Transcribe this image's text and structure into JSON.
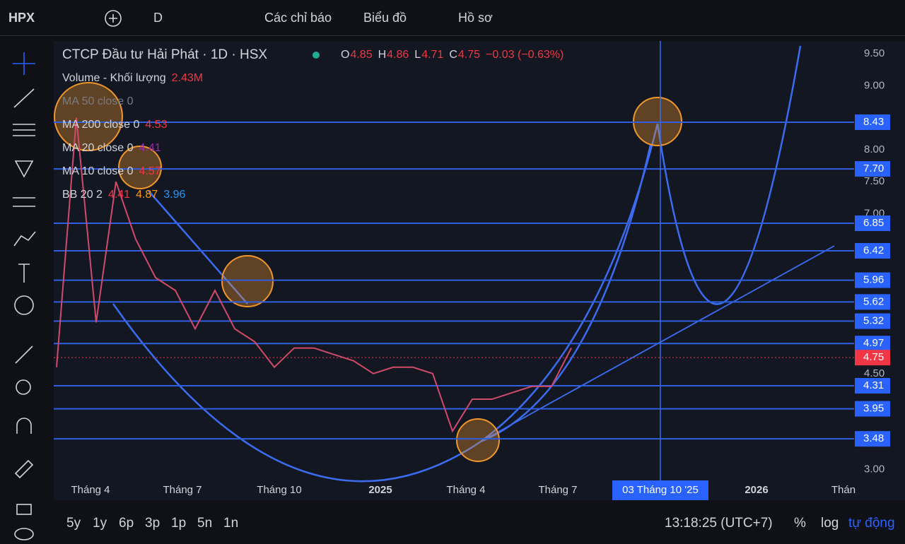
{
  "toolbar": {
    "symbol": "HPX",
    "interval": "D",
    "indicators": "Các chỉ báo",
    "chart_menu": "Biểu đồ",
    "profile": "Hồ sơ"
  },
  "legend": {
    "title": "CTCP Đầu tư Hải Phát · 1D · HSX",
    "ohlc": [
      {
        "label": "O",
        "value": "4.85"
      },
      {
        "label": "H",
        "value": "4.86"
      },
      {
        "label": "L",
        "value": "4.71"
      },
      {
        "label": "C",
        "value": "4.75"
      }
    ],
    "change": "−0.03 (−0.63%)",
    "volume": {
      "label": "Volume - Khối lượng",
      "value": "2.43M"
    },
    "indicators": [
      {
        "name": "MA 50 close 0",
        "values": []
      },
      {
        "name": "MA 200 close 0",
        "values": [
          "4.53"
        ]
      },
      {
        "name": "MA 20 close 0",
        "values": [
          "4.41"
        ]
      },
      {
        "name": "MA 10 close 0",
        "values": [
          "4.57"
        ]
      },
      {
        "name": "BB 20 2",
        "values": [
          "4.41",
          "4.87",
          "3.96"
        ]
      }
    ]
  },
  "chart_data": {
    "type": "line",
    "color": "#d04a6a",
    "values": [
      4.6,
      8.5,
      5.3,
      7.5,
      6.6,
      6.0,
      5.8,
      5.2,
      5.8,
      5.2,
      5.0,
      4.6,
      4.9,
      4.9,
      4.8,
      4.7,
      4.5,
      4.6,
      4.6,
      4.5,
      3.6,
      4.1,
      4.1,
      4.2,
      4.3,
      4.3,
      4.9
    ],
    "ylim": [
      2.83,
      9.7
    ],
    "yticks": [
      {
        "value": 3,
        "label": "3.00"
      },
      {
        "value": 4.5,
        "label": "4.50"
      },
      {
        "value": 7,
        "label": "7.00"
      },
      {
        "value": 7.5,
        "label": "7.50"
      },
      {
        "value": 8,
        "label": "8.00"
      },
      {
        "value": 9,
        "label": "9.00"
      },
      {
        "value": 9.5,
        "label": "9.50"
      }
    ],
    "levels": [
      {
        "value": 8.43,
        "label": "8.43"
      },
      {
        "value": 7.7,
        "label": "7.70"
      },
      {
        "value": 6.85,
        "label": "6.85"
      },
      {
        "value": 6.42,
        "label": "6.42"
      },
      {
        "value": 5.96,
        "label": "5.96"
      },
      {
        "value": 5.62,
        "label": "5.62"
      },
      {
        "value": 5.32,
        "label": "5.32"
      },
      {
        "value": 4.97,
        "label": "4.97"
      },
      {
        "value": 4.31,
        "label": "4.31"
      },
      {
        "value": 3.95,
        "label": "3.95"
      },
      {
        "value": 3.48,
        "label": "3.48"
      }
    ],
    "last_price": {
      "value": 4.75,
      "label": "4.75"
    },
    "x_labels": [
      "Tháng 4",
      "Tháng 7",
      "Tháng 10",
      "2025",
      "Tháng 4",
      "Tháng 7",
      "2026",
      "Thán"
    ],
    "crosshair_label": "03 Tháng 10 '25"
  },
  "timeframes": [
    "5y",
    "1y",
    "6p",
    "3p",
    "1p",
    "5n",
    "1n"
  ],
  "clock": "13:18:25 (UTC+7)",
  "scale_options": [
    "%",
    "log",
    "tự động"
  ]
}
